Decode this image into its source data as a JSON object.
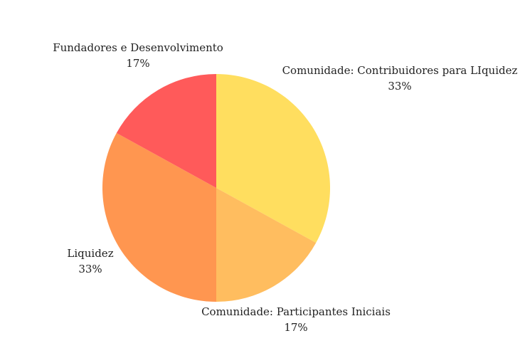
{
  "chart_data": {
    "type": "pie",
    "title": "",
    "start_angle_deg": 90,
    "direction": "clockwise",
    "legend": "none",
    "slices": [
      {
        "label": "Comunidade: Contribuidores para LIquidez",
        "value": 33,
        "percent_label": "33%",
        "color": "#FFDE5F"
      },
      {
        "label": "Comunidade: Participantes Iniciais",
        "value": 17,
        "percent_label": "17%",
        "color": "#FFBD5F"
      },
      {
        "label": "Liquidez",
        "value": 33,
        "percent_label": "33%",
        "color": "#FF9650"
      },
      {
        "label": "Fundadores e Desenvolvimento",
        "value": 17,
        "percent_label": "17%",
        "color": "#FF5A5A"
      }
    ]
  }
}
